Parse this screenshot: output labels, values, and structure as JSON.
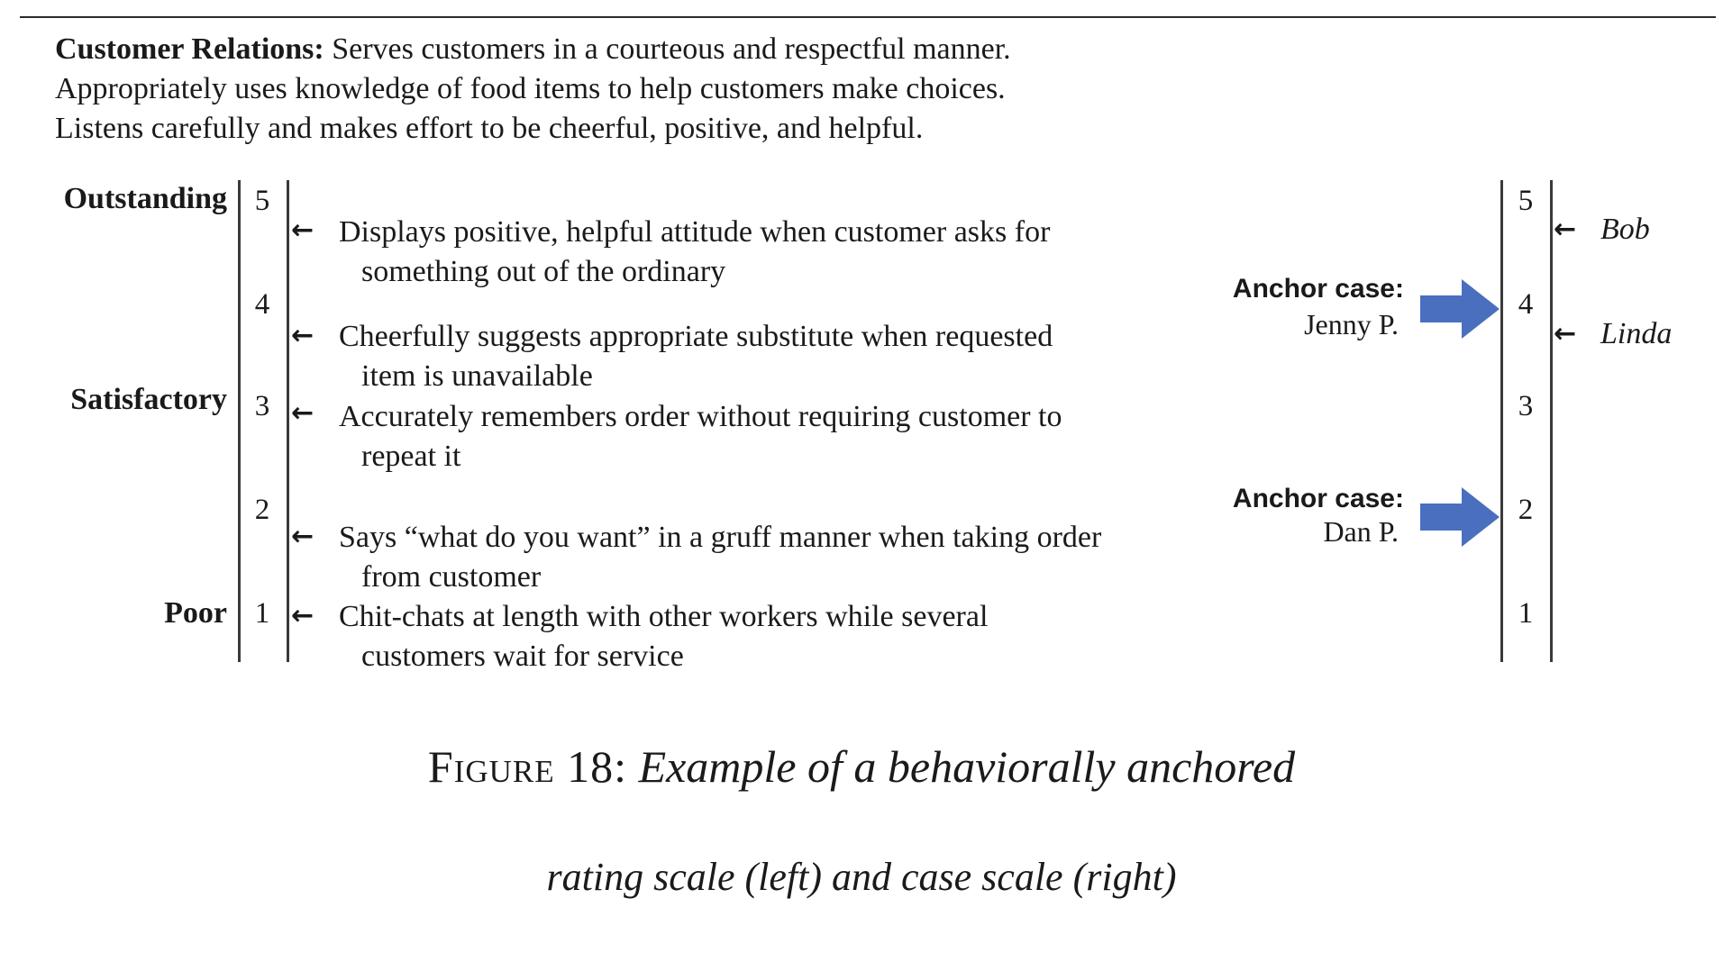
{
  "intro": {
    "bold_label": "Customer Relations:",
    "line1_rest": " Serves customers in a courteous and respectful manner.",
    "line2": "Appropriately uses knowledge of food items to help customers make choices.",
    "line3": "Listens carefully and makes effort to be cheerful, positive, and helpful."
  },
  "left_scale": {
    "labels": {
      "outstanding": "Outstanding",
      "satisfactory": "Satisfactory",
      "poor": "Poor"
    },
    "numbers": [
      "5",
      "4",
      "3",
      "2",
      "1"
    ],
    "anchors": [
      {
        "line1": "Displays positive, helpful attitude when customer asks for",
        "line2": "something out of the ordinary",
        "rating": 4.7
      },
      {
        "line1": "Cheerfully suggests appropriate substitute when requested",
        "line2": "item is unavailable",
        "rating": 3.7
      },
      {
        "line1": "Accurately remembers order without requiring customer to",
        "line2": "repeat it",
        "rating": 3.0
      },
      {
        "line1": "Says “what do you want” in a gruff manner when taking order",
        "line2": "from customer",
        "rating": 1.8
      },
      {
        "line1": "Chit-chats at length with other workers while several",
        "line2": "customers wait for service",
        "rating": 1.0
      }
    ],
    "arrow_glyph": "←"
  },
  "right_scale": {
    "numbers": [
      "5",
      "4",
      "3",
      "2",
      "1"
    ],
    "anchor_cases": [
      {
        "title": "Anchor case:",
        "name": "Jenny P.",
        "rating": 4
      },
      {
        "title": "Anchor case:",
        "name": "Dan P.",
        "rating": 2
      }
    ],
    "rated": [
      {
        "name": "Bob",
        "rating": 4.7
      },
      {
        "name": "Linda",
        "rating": 3.7
      }
    ],
    "arrow_color": "#4a6fbf"
  },
  "caption": {
    "figure": "Figure 18:",
    "line1": "Example of a behaviorally anchored",
    "line2": "rating scale (left) and case scale (right)"
  }
}
